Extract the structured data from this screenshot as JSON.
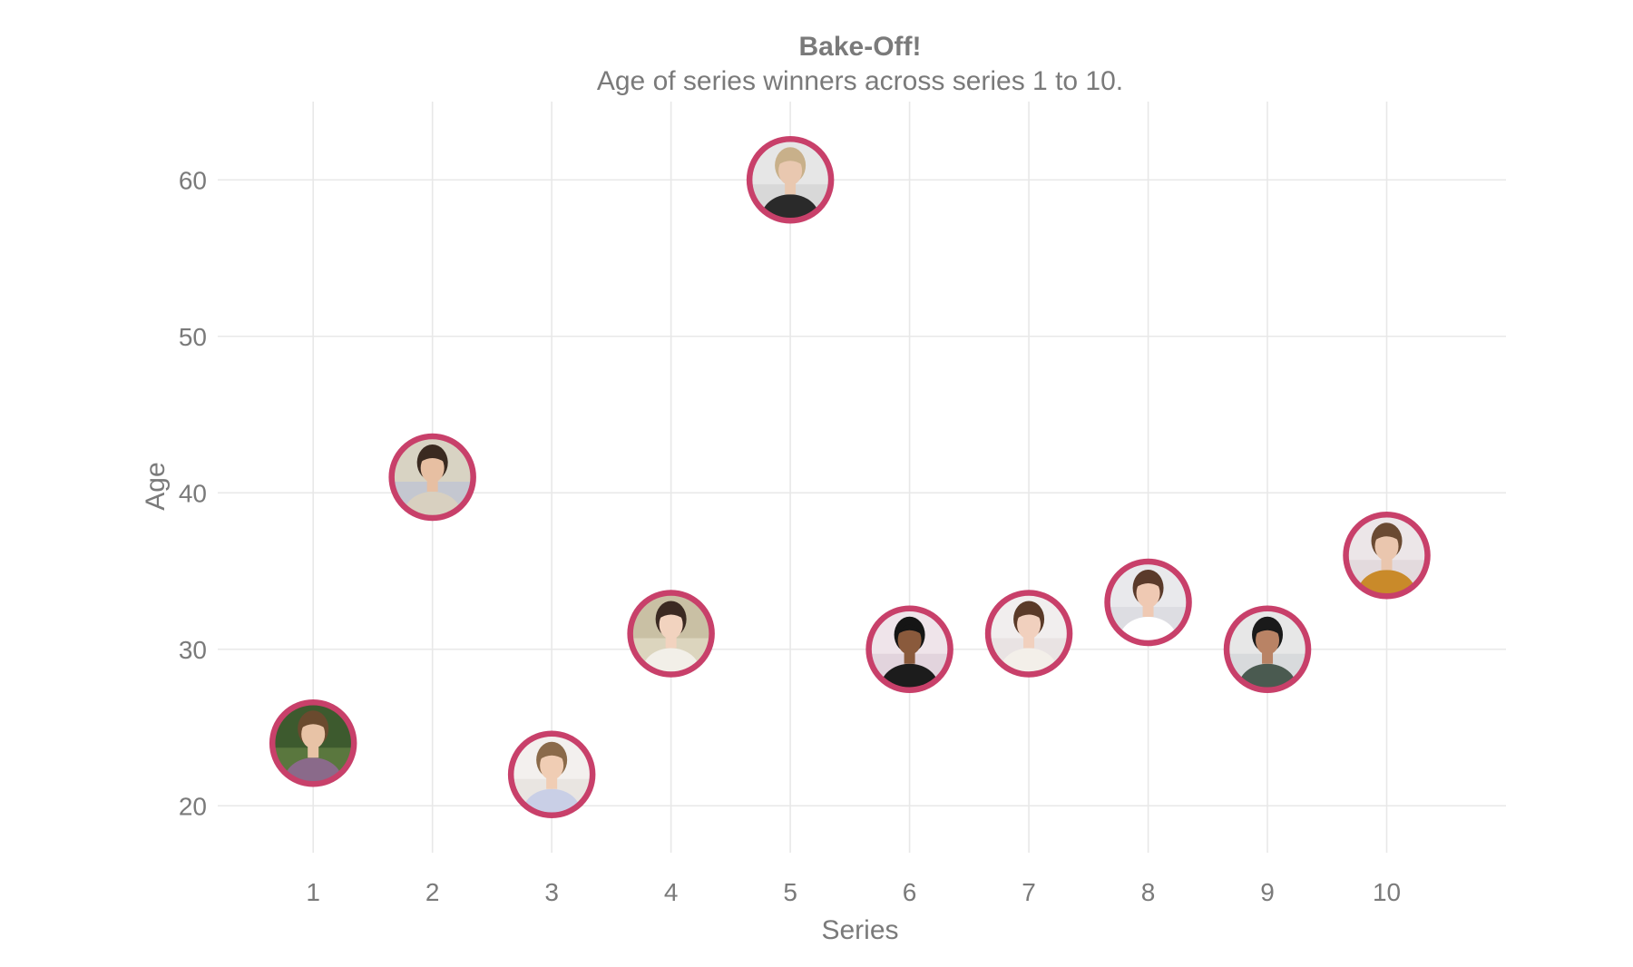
{
  "chart_data": {
    "type": "scatter",
    "title": "Bake-Off!",
    "subtitle": "Age of series winners across series 1 to 10.",
    "xlabel": "Series",
    "ylabel": "Age",
    "x": [
      1,
      2,
      3,
      4,
      5,
      6,
      7,
      8,
      9,
      10
    ],
    "y": [
      24,
      41,
      22,
      31,
      60,
      30,
      31,
      33,
      30,
      36
    ],
    "x_ticks": [
      "1",
      "2",
      "3",
      "4",
      "5",
      "6",
      "7",
      "8",
      "9",
      "10"
    ],
    "y_ticks": [
      "20",
      "30",
      "40",
      "50",
      "60"
    ],
    "xlim": [
      0.2,
      11
    ],
    "ylim": [
      17,
      65
    ],
    "grid": true,
    "legend": "none",
    "marker": "circular portrait photo with thick ring"
  },
  "colors": {
    "ring": "#c8406a",
    "grid": "#e8e8e8",
    "text": "#7a7a7a",
    "background": "#ffffff"
  }
}
